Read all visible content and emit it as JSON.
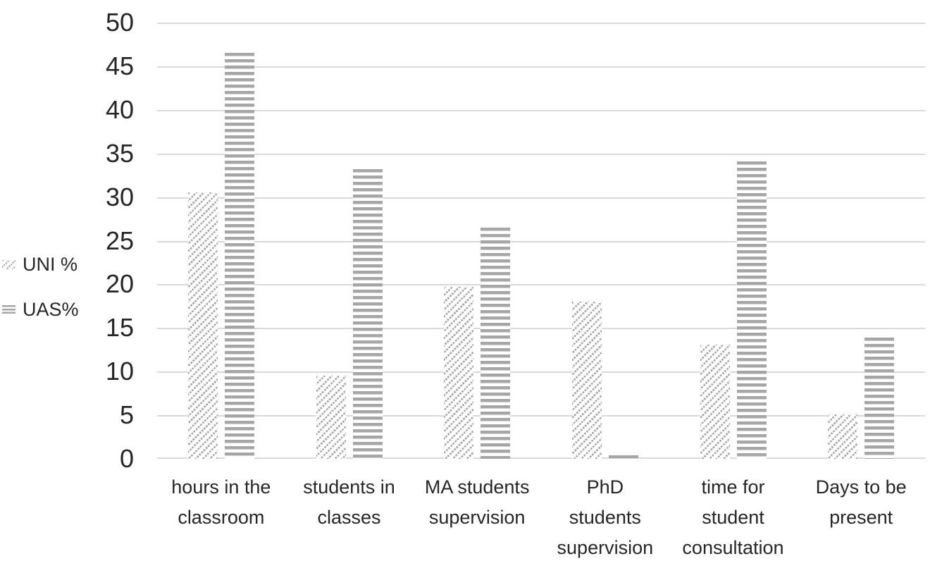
{
  "chart_data": {
    "type": "bar",
    "categories": [
      "hours in the classroom",
      "students in classes",
      "MA students supervision",
      "PhD students supervision",
      "time for student consultation",
      "Days to be present"
    ],
    "category_label_lines": [
      [
        "hours in the",
        "classroom"
      ],
      [
        "students in",
        "classes"
      ],
      [
        "MA students",
        "supervision"
      ],
      [
        "PhD",
        "students",
        "supervision"
      ],
      [
        "time for",
        "student",
        "consultation"
      ],
      [
        "Days to be",
        "present"
      ]
    ],
    "series": [
      {
        "name": "UNI %",
        "pattern": "diagonal-hatch",
        "color": "#a9a9a9",
        "values": [
          30.5,
          9.5,
          19.7,
          18,
          13.1,
          5.1
        ]
      },
      {
        "name": "UAS%",
        "pattern": "horizontal-stripes",
        "color": "#a6a6a6",
        "values": [
          46.5,
          33.2,
          26.5,
          0.4,
          34.1,
          13.9
        ]
      }
    ],
    "title": "",
    "xlabel": "",
    "ylabel": "",
    "ylim": [
      0,
      50
    ],
    "yticks": [
      0,
      5,
      10,
      15,
      20,
      25,
      30,
      35,
      40,
      45,
      50
    ],
    "grid": true,
    "legend_position": "left",
    "gridline_color": "#d9d9d9",
    "text_color": "#262626",
    "background_color": "#ffffff"
  },
  "legend": {
    "items": [
      {
        "label": "UNI %"
      },
      {
        "label": "UAS%"
      }
    ]
  }
}
